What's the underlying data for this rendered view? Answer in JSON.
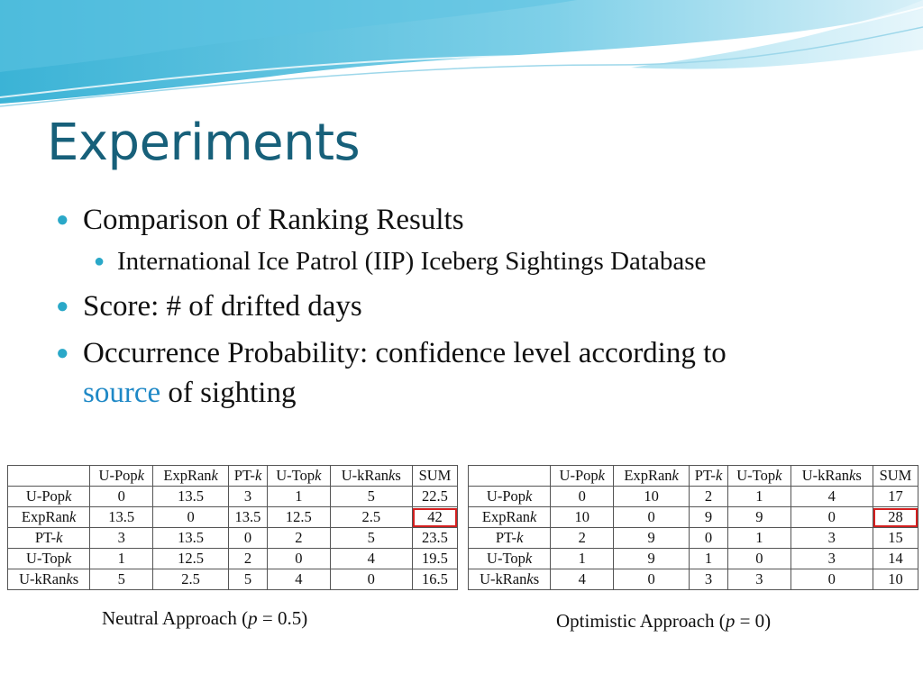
{
  "slide": {
    "title": "Experiments",
    "bullets": {
      "b1": "Comparison of Ranking Results",
      "b1_sub": "International Ice Patrol (IIP) Iceberg Sightings Database",
      "b2": "Score: # of drifted days",
      "b3_text": "Occurrence Probability: confidence level according to",
      "b3_link": "source",
      "b3_tail": " of sighting"
    }
  },
  "tables": {
    "neutral": {
      "caption_prefix": "Neutral Approach (",
      "caption_var": "p",
      "caption_suffix": " = 0.5)",
      "highlight_cell": "42",
      "columns": [
        "U-Popk",
        "ExpRank",
        "PT-k",
        "U-Topk",
        "U-kRanks",
        "SUM"
      ],
      "rows": [
        {
          "label": "U-Popk",
          "cells": [
            "0",
            "13.5",
            "3",
            "1",
            "5",
            "22.5"
          ]
        },
        {
          "label": "ExpRank",
          "cells": [
            "13.5",
            "0",
            "13.5",
            "12.5",
            "2.5",
            "42"
          ]
        },
        {
          "label": "PT-k",
          "cells": [
            "3",
            "13.5",
            "0",
            "2",
            "5",
            "23.5"
          ]
        },
        {
          "label": "U-Topk",
          "cells": [
            "1",
            "12.5",
            "2",
            "0",
            "4",
            "19.5"
          ]
        },
        {
          "label": "U-kRanks",
          "cells": [
            "5",
            "2.5",
            "5",
            "4",
            "0",
            "16.5"
          ]
        }
      ]
    },
    "optimistic": {
      "caption_prefix": "Optimistic Approach (",
      "caption_var": "p",
      "caption_suffix": " = 0)",
      "highlight_cell": "28",
      "columns": [
        "U-Popk",
        "ExpRank",
        "PT-k",
        "U-Topk",
        "U-kRanks",
        "SUM"
      ],
      "rows": [
        {
          "label": "U-Popk",
          "cells": [
            "0",
            "10",
            "2",
            "1",
            "4",
            "17"
          ]
        },
        {
          "label": "ExpRank",
          "cells": [
            "10",
            "0",
            "9",
            "9",
            "0",
            "28"
          ]
        },
        {
          "label": "PT-k",
          "cells": [
            "2",
            "9",
            "0",
            "1",
            "3",
            "15"
          ]
        },
        {
          "label": "U-Topk",
          "cells": [
            "1",
            "9",
            "1",
            "0",
            "3",
            "14"
          ]
        },
        {
          "label": "U-kRanks",
          "cells": [
            "4",
            "0",
            "3",
            "3",
            "0",
            "10"
          ]
        }
      ]
    }
  },
  "colors": {
    "title": "#17607a",
    "bullet": "#2aa8c8",
    "link": "#1e88c6",
    "highlight": "#d42020"
  }
}
